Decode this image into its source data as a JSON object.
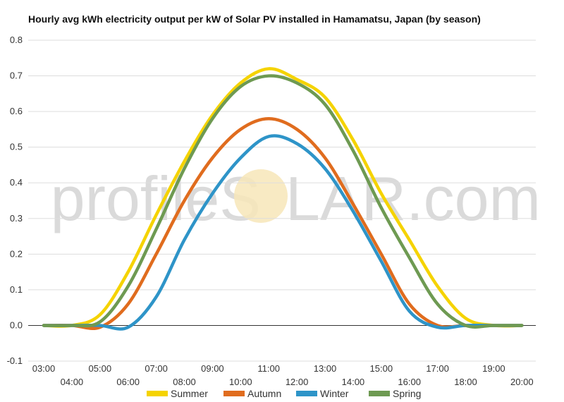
{
  "chart_data": {
    "type": "line",
    "title": "Hourly avg kWh electricity output per kW of Solar PV installed in Hamamatsu, Japan (by season)",
    "xlabel": "",
    "ylabel": "",
    "x": [
      "03:00",
      "04:00",
      "05:00",
      "06:00",
      "07:00",
      "08:00",
      "09:00",
      "10:00",
      "11:00",
      "12:00",
      "13:00",
      "14:00",
      "15:00",
      "16:00",
      "17:00",
      "18:00",
      "19:00",
      "20:00"
    ],
    "ylim": [
      -0.1,
      0.8
    ],
    "yticks": [
      -0.1,
      0.0,
      0.1,
      0.2,
      0.3,
      0.4,
      0.5,
      0.6,
      0.7,
      0.8
    ],
    "series": [
      {
        "name": "Summer",
        "color": "#f5d300",
        "values": [
          0.0,
          0.0,
          0.03,
          0.15,
          0.31,
          0.46,
          0.59,
          0.68,
          0.72,
          0.69,
          0.64,
          0.52,
          0.37,
          0.24,
          0.11,
          0.02,
          0.0,
          0.0
        ]
      },
      {
        "name": "Autumn",
        "color": "#e06c1e",
        "values": [
          0.0,
          0.0,
          -0.005,
          0.06,
          0.2,
          0.35,
          0.47,
          0.55,
          0.58,
          0.55,
          0.47,
          0.34,
          0.2,
          0.06,
          0.0,
          0.0,
          0.0,
          0.0
        ]
      },
      {
        "name": "Winter",
        "color": "#2e94c8",
        "values": [
          0.0,
          0.0,
          0.0,
          -0.005,
          0.08,
          0.24,
          0.37,
          0.47,
          0.53,
          0.51,
          0.44,
          0.32,
          0.18,
          0.04,
          -0.005,
          0.0,
          0.0,
          0.0
        ]
      },
      {
        "name": "Spring",
        "color": "#6e9a52",
        "values": [
          0.0,
          0.0,
          0.01,
          0.11,
          0.27,
          0.44,
          0.58,
          0.67,
          0.7,
          0.68,
          0.62,
          0.49,
          0.33,
          0.19,
          0.06,
          0.0,
          0.0,
          0.0
        ]
      }
    ],
    "grid": true,
    "legend": "bottom-center"
  },
  "watermark": {
    "left_text": "profileS",
    "right_text": "LAR.com"
  }
}
